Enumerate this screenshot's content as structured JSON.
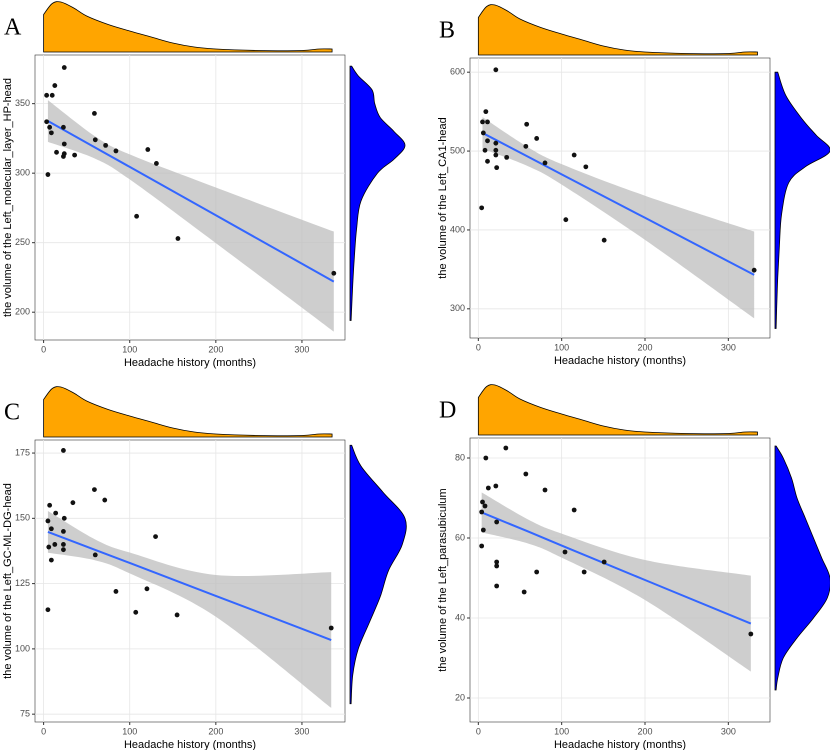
{
  "chart_data": [
    {
      "type": "scatter",
      "label": "A",
      "xlabel": "Headache history (months)",
      "ylabel": "the volume of the Left_molecular_layer_HP-head",
      "x": [
        3.5,
        10,
        13,
        24,
        3.5,
        7,
        9,
        23,
        15,
        24,
        23,
        24,
        36,
        59,
        60,
        72,
        84,
        121,
        131,
        5,
        108,
        156,
        337
      ],
      "y": [
        356,
        356,
        363,
        376,
        337,
        333,
        329,
        333,
        315,
        321,
        312,
        314,
        313,
        343,
        324,
        320,
        316,
        317,
        307,
        299,
        269,
        253,
        228
      ],
      "color": "#111111",
      "xlim": [
        -10,
        350
      ],
      "ylim": [
        180,
        385
      ],
      "xticks": [
        0,
        100,
        200,
        300
      ],
      "yticks": [
        200,
        250,
        300,
        350
      ],
      "grid": true,
      "fit": {
        "color": "#3366ff",
        "band_color": "#bdbdbd",
        "x": [
          5,
          60,
          100,
          200,
          337
        ],
        "y": [
          337.5,
          318.4,
          304.5,
          269.7,
          222
        ],
        "lower": [
          322.5,
          310.4,
          295.5,
          249.7,
          186
        ],
        "upper": [
          352.5,
          326.4,
          313.5,
          289.7,
          258
        ]
      },
      "x_density": {
        "color": "#ffa500",
        "x": [
          0,
          10,
          20,
          35,
          50,
          75,
          100,
          125,
          150,
          175,
          200,
          250,
          300,
          320,
          335
        ],
        "density": [
          0.75,
          0.97,
          1.0,
          0.88,
          0.72,
          0.55,
          0.42,
          0.3,
          0.18,
          0.1,
          0.06,
          0.03,
          0.03,
          0.06,
          0.06
        ]
      },
      "y_density": {
        "color": "#0000ff",
        "y": [
          194,
          220,
          240,
          260,
          280,
          300,
          310,
          320,
          330,
          340,
          350,
          360,
          370,
          377
        ],
        "density": [
          0.02,
          0.05,
          0.08,
          0.12,
          0.2,
          0.5,
          0.8,
          1.0,
          0.8,
          0.55,
          0.45,
          0.4,
          0.15,
          0.03
        ]
      }
    },
    {
      "type": "scatter",
      "label": "B",
      "xlabel": "Headache history (months)",
      "ylabel": "the volume of the Left_CA1-head",
      "x": [
        21,
        9,
        5,
        11,
        6,
        11,
        4,
        8,
        11,
        21,
        21,
        21,
        22,
        34,
        58,
        57,
        70,
        80,
        115,
        105,
        129,
        151,
        331
      ],
      "y": [
        603,
        550,
        537,
        537,
        523,
        513,
        428,
        501,
        487,
        510,
        501,
        495,
        479,
        492,
        534,
        506,
        516,
        485,
        495,
        413,
        480,
        387,
        349
      ],
      "color": "#111111",
      "xlim": [
        -10,
        350
      ],
      "ylim": [
        263,
        618
      ],
      "xticks": [
        0,
        100,
        200,
        300
      ],
      "yticks": [
        300,
        400,
        500,
        600
      ],
      "grid": true,
      "fit": {
        "color": "#3366ff",
        "band_color": "#bdbdbd",
        "x": [
          5,
          60,
          100,
          200,
          331
        ],
        "y": [
          523,
          492.6,
          470.5,
          415.4,
          343
        ],
        "lower": [
          503,
          480.6,
          457.5,
          387.4,
          288
        ],
        "upper": [
          543,
          504.6,
          483.5,
          443.4,
          398
        ]
      },
      "x_density": {
        "color": "#ffa500",
        "x": [
          0,
          10,
          20,
          35,
          50,
          75,
          100,
          125,
          150,
          175,
          200,
          250,
          300,
          320,
          335
        ],
        "density": [
          0.75,
          0.97,
          1.0,
          0.88,
          0.72,
          0.55,
          0.42,
          0.3,
          0.18,
          0.1,
          0.06,
          0.03,
          0.03,
          0.06,
          0.06
        ]
      },
      "y_density": {
        "color": "#0000ff",
        "y": [
          275,
          300,
          340,
          380,
          420,
          460,
          480,
          500,
          520,
          540,
          570,
          600
        ],
        "density": [
          0.02,
          0.03,
          0.05,
          0.08,
          0.12,
          0.25,
          0.55,
          1.0,
          0.75,
          0.5,
          0.2,
          0.05
        ]
      }
    },
    {
      "type": "scatter",
      "label": "C",
      "xlabel": "Headache history (months)",
      "ylabel": "the volume of the Left_GC-ML-DG-head",
      "x": [
        23,
        59,
        71,
        7,
        34,
        14,
        5,
        24,
        9,
        23,
        13,
        6,
        23,
        23,
        9,
        60,
        130,
        84,
        120,
        155,
        107,
        5,
        334
      ],
      "y": [
        176,
        161,
        157,
        155,
        156,
        152,
        149,
        150,
        146,
        145,
        140,
        139,
        140,
        138,
        134,
        136,
        143,
        122,
        123,
        113,
        114,
        115,
        108
      ],
      "color": "#111111",
      "xlim": [
        -10,
        350
      ],
      "ylim": [
        72,
        180
      ],
      "xticks": [
        0,
        100,
        200,
        300
      ],
      "yticks": [
        75,
        100,
        125,
        150,
        175
      ],
      "grid": true,
      "fit": {
        "color": "#3366ff",
        "band_color": "#bdbdbd",
        "x": [
          5,
          60,
          100,
          200,
          334
        ],
        "y": [
          144.8,
          137.9,
          132.9,
          120.3,
          103.4
        ],
        "lower": [
          136.8,
          133.9,
          128.9,
          112.3,
          77.4
        ],
        "upper": [
          152.8,
          141.9,
          136.9,
          128.3,
          129.4
        ]
      },
      "x_density": {
        "color": "#ffa500",
        "x": [
          0,
          10,
          20,
          35,
          50,
          75,
          100,
          125,
          150,
          175,
          200,
          250,
          300,
          320,
          335
        ],
        "density": [
          0.75,
          0.97,
          1.0,
          0.88,
          0.72,
          0.55,
          0.42,
          0.3,
          0.18,
          0.1,
          0.06,
          0.03,
          0.03,
          0.06,
          0.06
        ]
      },
      "y_density": {
        "color": "#0000ff",
        "y": [
          79,
          90,
          100,
          110,
          120,
          130,
          140,
          150,
          160,
          170,
          178
        ],
        "density": [
          0.02,
          0.05,
          0.15,
          0.35,
          0.55,
          0.7,
          0.95,
          1.0,
          0.6,
          0.2,
          0.03
        ]
      }
    },
    {
      "type": "scatter",
      "label": "D",
      "xlabel": "Headache history (months)",
      "ylabel": "the volume of the Left_parasubiculum",
      "x": [
        33,
        9,
        57,
        80,
        12,
        21,
        115,
        5,
        8,
        4,
        22,
        6,
        4,
        104,
        151,
        22,
        22,
        70,
        127,
        22,
        55,
        327
      ],
      "y": [
        82.5,
        80,
        76,
        72,
        72.5,
        73,
        67,
        69,
        68,
        66.5,
        64,
        62,
        58,
        56.5,
        54,
        54,
        53,
        51.5,
        51.5,
        48,
        46.5,
        36
      ],
      "color": "#111111",
      "xlim": [
        -10,
        350
      ],
      "ylim": [
        14,
        85
      ],
      "xticks": [
        0,
        100,
        200,
        300
      ],
      "yticks": [
        20,
        40,
        60,
        80
      ],
      "grid": true,
      "fit": {
        "color": "#3366ff",
        "band_color": "#bdbdbd",
        "x": [
          4,
          60,
          100,
          200,
          327
        ],
        "y": [
          66.4,
          61.6,
          58.1,
          49.5,
          38.6
        ],
        "lower": [
          61.4,
          58.6,
          55.1,
          44.5,
          26.6
        ],
        "upper": [
          71.4,
          64.6,
          61.1,
          54.5,
          50.6
        ]
      },
      "x_density": {
        "color": "#ffa500",
        "x": [
          0,
          10,
          20,
          35,
          50,
          75,
          100,
          125,
          150,
          175,
          200,
          250,
          300,
          320,
          335
        ],
        "density": [
          0.75,
          0.97,
          1.0,
          0.88,
          0.72,
          0.55,
          0.42,
          0.3,
          0.18,
          0.1,
          0.06,
          0.03,
          0.03,
          0.06,
          0.06
        ]
      },
      "y_density": {
        "color": "#0000ff",
        "y": [
          22,
          25,
          30,
          35,
          40,
          45,
          50,
          55,
          60,
          65,
          70,
          75,
          80,
          83
        ],
        "density": [
          0.02,
          0.05,
          0.15,
          0.4,
          0.7,
          0.95,
          1.0,
          0.85,
          0.7,
          0.55,
          0.4,
          0.3,
          0.15,
          0.02
        ]
      }
    }
  ]
}
